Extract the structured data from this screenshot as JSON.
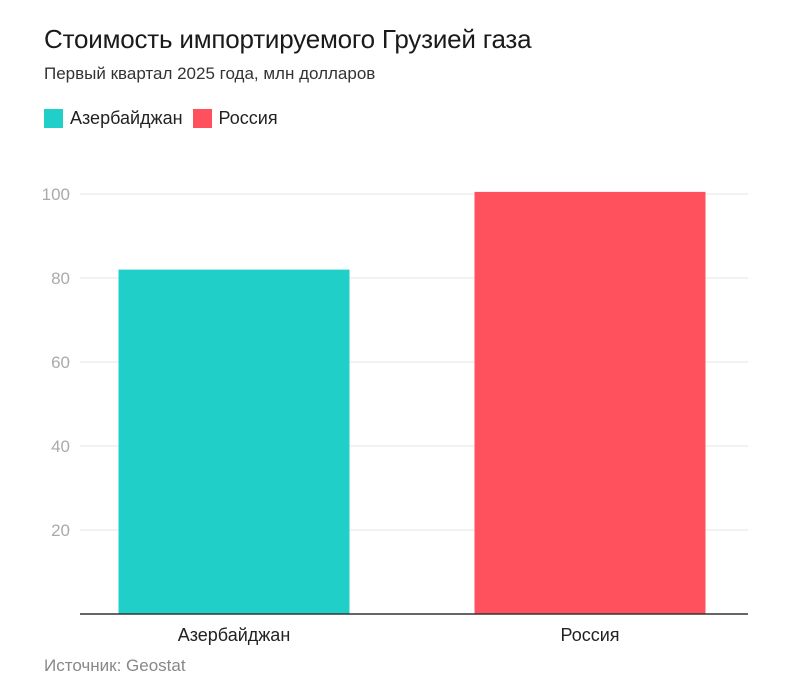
{
  "chart_data": {
    "type": "bar",
    "title": "Стоимость импортируемого Грузией газа",
    "subtitle": "Первый квартал 2025 года, млн долларов",
    "categories": [
      "Азербайджан",
      "Россия"
    ],
    "values": [
      82,
      100.5
    ],
    "colors": [
      "#21cfc9",
      "#ff505e"
    ],
    "ylim": [
      0,
      100
    ],
    "yticks": [
      20,
      40,
      60,
      80,
      100
    ],
    "legend": {
      "position": "top-left",
      "entries": [
        {
          "label": "Азербайджан",
          "color": "#21cfc9"
        },
        {
          "label": "Россия",
          "color": "#ff505e"
        }
      ]
    },
    "grid": true,
    "xlabel": "",
    "ylabel": ""
  },
  "source": "Источник: Geostat"
}
